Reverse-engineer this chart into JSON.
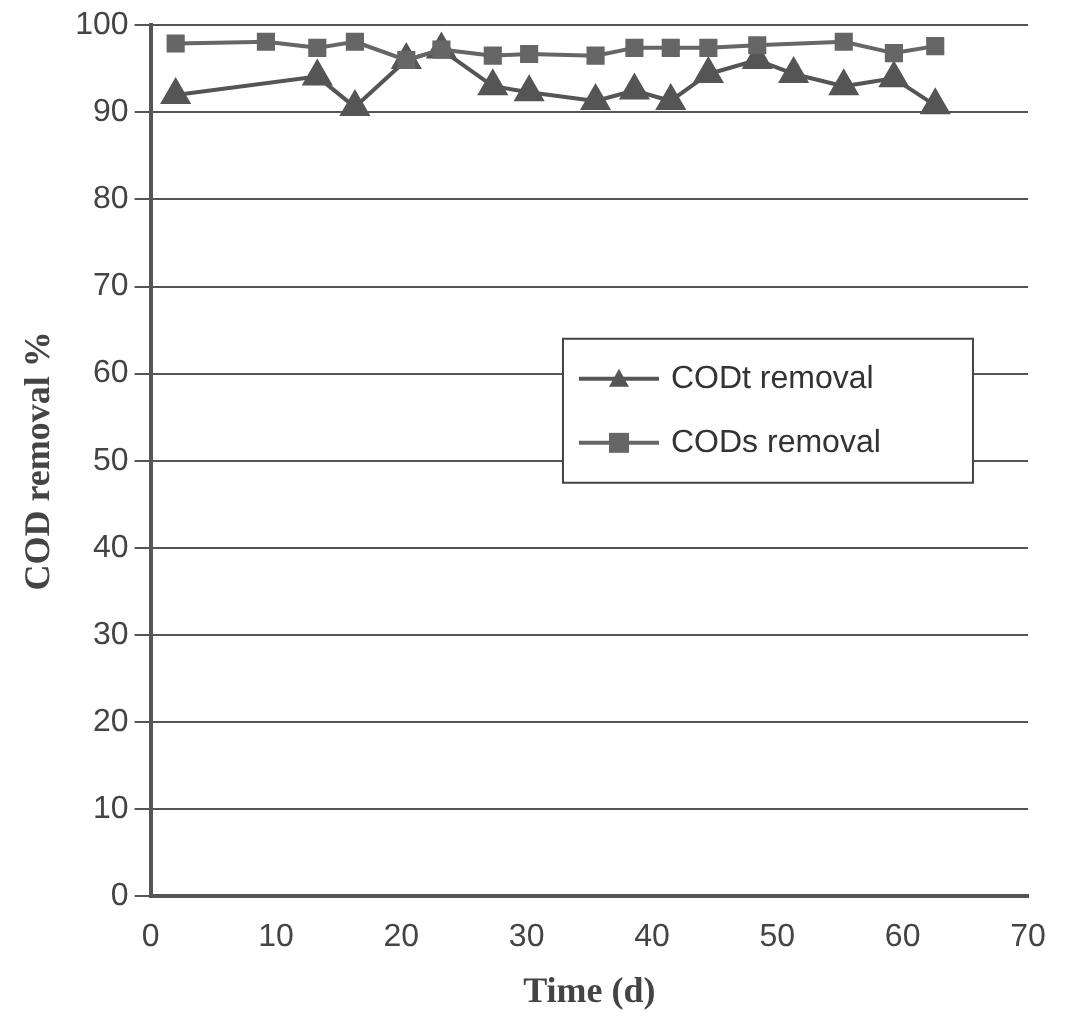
{
  "chart_data": {
    "type": "line",
    "xlabel": "Time (d)",
    "ylabel": "COD removal %",
    "xlim": [
      0,
      70
    ],
    "xticks": [
      0,
      10,
      20,
      30,
      40,
      50,
      60,
      70
    ],
    "ylim": [
      0,
      100
    ],
    "yticks": [
      0,
      10,
      20,
      30,
      40,
      50,
      60,
      70,
      80,
      90,
      100
    ],
    "grid": "y",
    "legend": "right",
    "line_style": "solid",
    "series": [
      {
        "name": "CODt removal",
        "color": "#555555",
        "marker": "triangle",
        "x": [
          2,
          13.3,
          16.3,
          20.4,
          23.2,
          27.3,
          30.2,
          35.5,
          38.6,
          41.5,
          44.5,
          48.4,
          51.3,
          55.3,
          59.3,
          62.6
        ],
        "values": [
          92,
          94.1,
          90.6,
          96,
          97.2,
          93,
          92.3,
          91.3,
          92.5,
          91.3,
          94.4,
          96,
          94.4,
          93,
          93.9,
          90.8
        ]
      },
      {
        "name": "CODs removal",
        "color": "#666666",
        "marker": "square",
        "x": [
          2,
          9.2,
          13.3,
          16.3,
          20.4,
          23.2,
          27.3,
          30.2,
          35.5,
          38.6,
          41.5,
          44.5,
          48.4,
          55.3,
          59.3,
          62.6
        ],
        "values": [
          97.9,
          98.1,
          97.4,
          98.1,
          96,
          97.2,
          96.5,
          96.7,
          96.5,
          97.4,
          97.4,
          97.4,
          97.7,
          98.1,
          96.8,
          97.6
        ]
      }
    ]
  }
}
